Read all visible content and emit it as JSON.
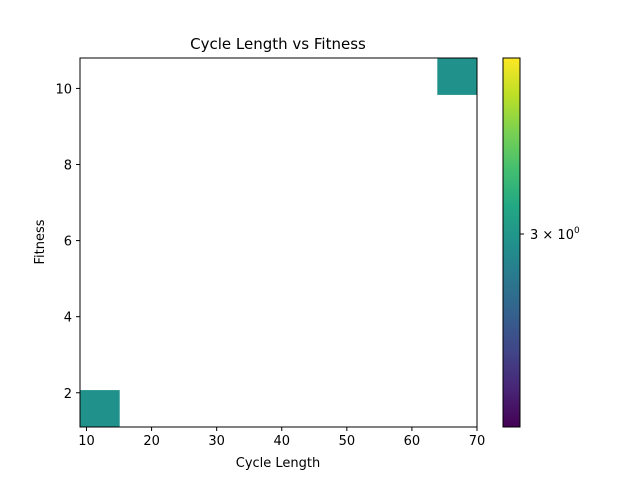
{
  "chart_data": {
    "type": "heatmap",
    "title": "Cycle Length vs Fitness",
    "xlabel": "Cycle Length",
    "ylabel": "Fitness",
    "xlim": [
      9,
      70
    ],
    "ylim": [
      1.1,
      10.8
    ],
    "x_ticks": [
      10,
      20,
      30,
      40,
      50,
      60,
      70
    ],
    "y_ticks": [
      2,
      4,
      6,
      8,
      10
    ],
    "grid": false,
    "cells": [
      {
        "x": [
          9,
          15.1
        ],
        "y": [
          1.1,
          2.07
        ],
        "count": 3
      },
      {
        "x": [
          63.9,
          70
        ],
        "y": [
          9.83,
          10.8
        ],
        "count": 3
      }
    ],
    "colormap": "viridis",
    "color_scale": "log",
    "cell_color": "#21918c",
    "colorbar": {
      "tick_base": "3 × 10",
      "tick_exponent": "0",
      "tick_value": 3
    }
  }
}
